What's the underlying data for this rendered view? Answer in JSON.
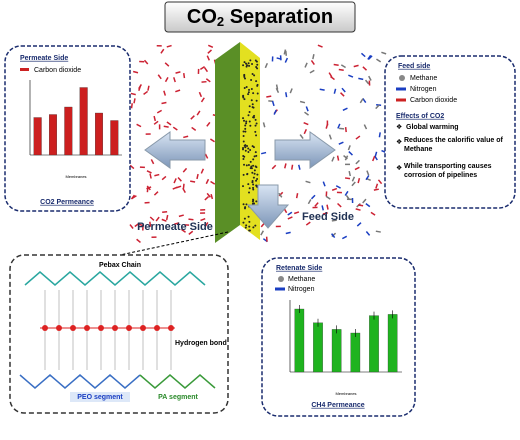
{
  "title": {
    "main": "CO",
    "sub": "2",
    "rest": " Separation"
  },
  "permeate_box": {
    "heading": "Permeate Side",
    "legend": "Carbon dioxide",
    "caption": "CO2 Permeance",
    "chart": {
      "type": "bar",
      "x_label": "Membranes",
      "values": [
        25,
        27,
        32,
        45,
        28,
        23
      ],
      "ylim": [
        0,
        50
      ],
      "color": "#cc1f1f"
    }
  },
  "feed_box": {
    "heading": "Feed side",
    "legend": [
      "Methane",
      "Nitrogen",
      "Carbon dioxide"
    ],
    "effects_heading": "Effects of CO2",
    "effects": [
      "Global warming",
      "Reduces the calorific value of Methane",
      "While transporting causes corrosion of pipelines"
    ]
  },
  "labels": {
    "permeate": "Permeate Side",
    "feed": "Feed Side"
  },
  "structure_box": {
    "chain": "Pebax Chain",
    "bond": "Hydrogen bond",
    "peo": "PEO segment",
    "pa": "PA segment"
  },
  "retenate_box": {
    "heading": "Retenate Side",
    "legend": [
      "Methane",
      "Nitrogen"
    ],
    "caption": "CH4 Permeance",
    "chart": {
      "type": "bar",
      "x_label": "Membranes",
      "values": [
        10.5,
        8.2,
        7.1,
        6.5,
        9.4,
        9.6
      ],
      "ylim": [
        0,
        12
      ],
      "color": "#1fb31f"
    }
  }
}
